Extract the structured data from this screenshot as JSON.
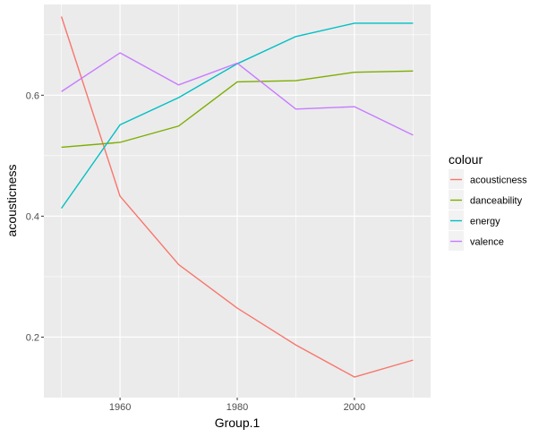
{
  "chart_data": {
    "type": "line",
    "xlabel": "Group.1",
    "ylabel": "acousticness",
    "x": [
      1950,
      1960,
      1970,
      1980,
      1990,
      2000,
      2010
    ],
    "xlim": [
      1947,
      2013
    ],
    "ylim": [
      0.1,
      0.75
    ],
    "x_ticks": [
      1960,
      1980,
      2000
    ],
    "x_tick_labels": [
      "1960",
      "1980",
      "2000"
    ],
    "y_ticks": [
      0.2,
      0.4,
      0.6
    ],
    "y_tick_labels": [
      "0.2",
      "0.4",
      "0.6"
    ],
    "grid": true,
    "legend": {
      "title": "colour",
      "position": "right"
    },
    "background": "#ebebeb",
    "series": [
      {
        "name": "acousticness",
        "color": "#F8766D",
        "values": [
          0.73,
          0.433,
          0.32,
          0.248,
          0.187,
          0.134,
          0.162
        ]
      },
      {
        "name": "danceability",
        "color": "#7CAE00",
        "values": [
          0.514,
          0.522,
          0.549,
          0.622,
          0.624,
          0.638,
          0.64
        ]
      },
      {
        "name": "energy",
        "color": "#00BFC4",
        "values": [
          0.413,
          0.551,
          0.596,
          0.652,
          0.697,
          0.719,
          0.719
        ]
      },
      {
        "name": "valence",
        "color": "#C77CFF",
        "values": [
          0.606,
          0.67,
          0.617,
          0.653,
          0.577,
          0.581,
          0.534
        ]
      }
    ]
  }
}
